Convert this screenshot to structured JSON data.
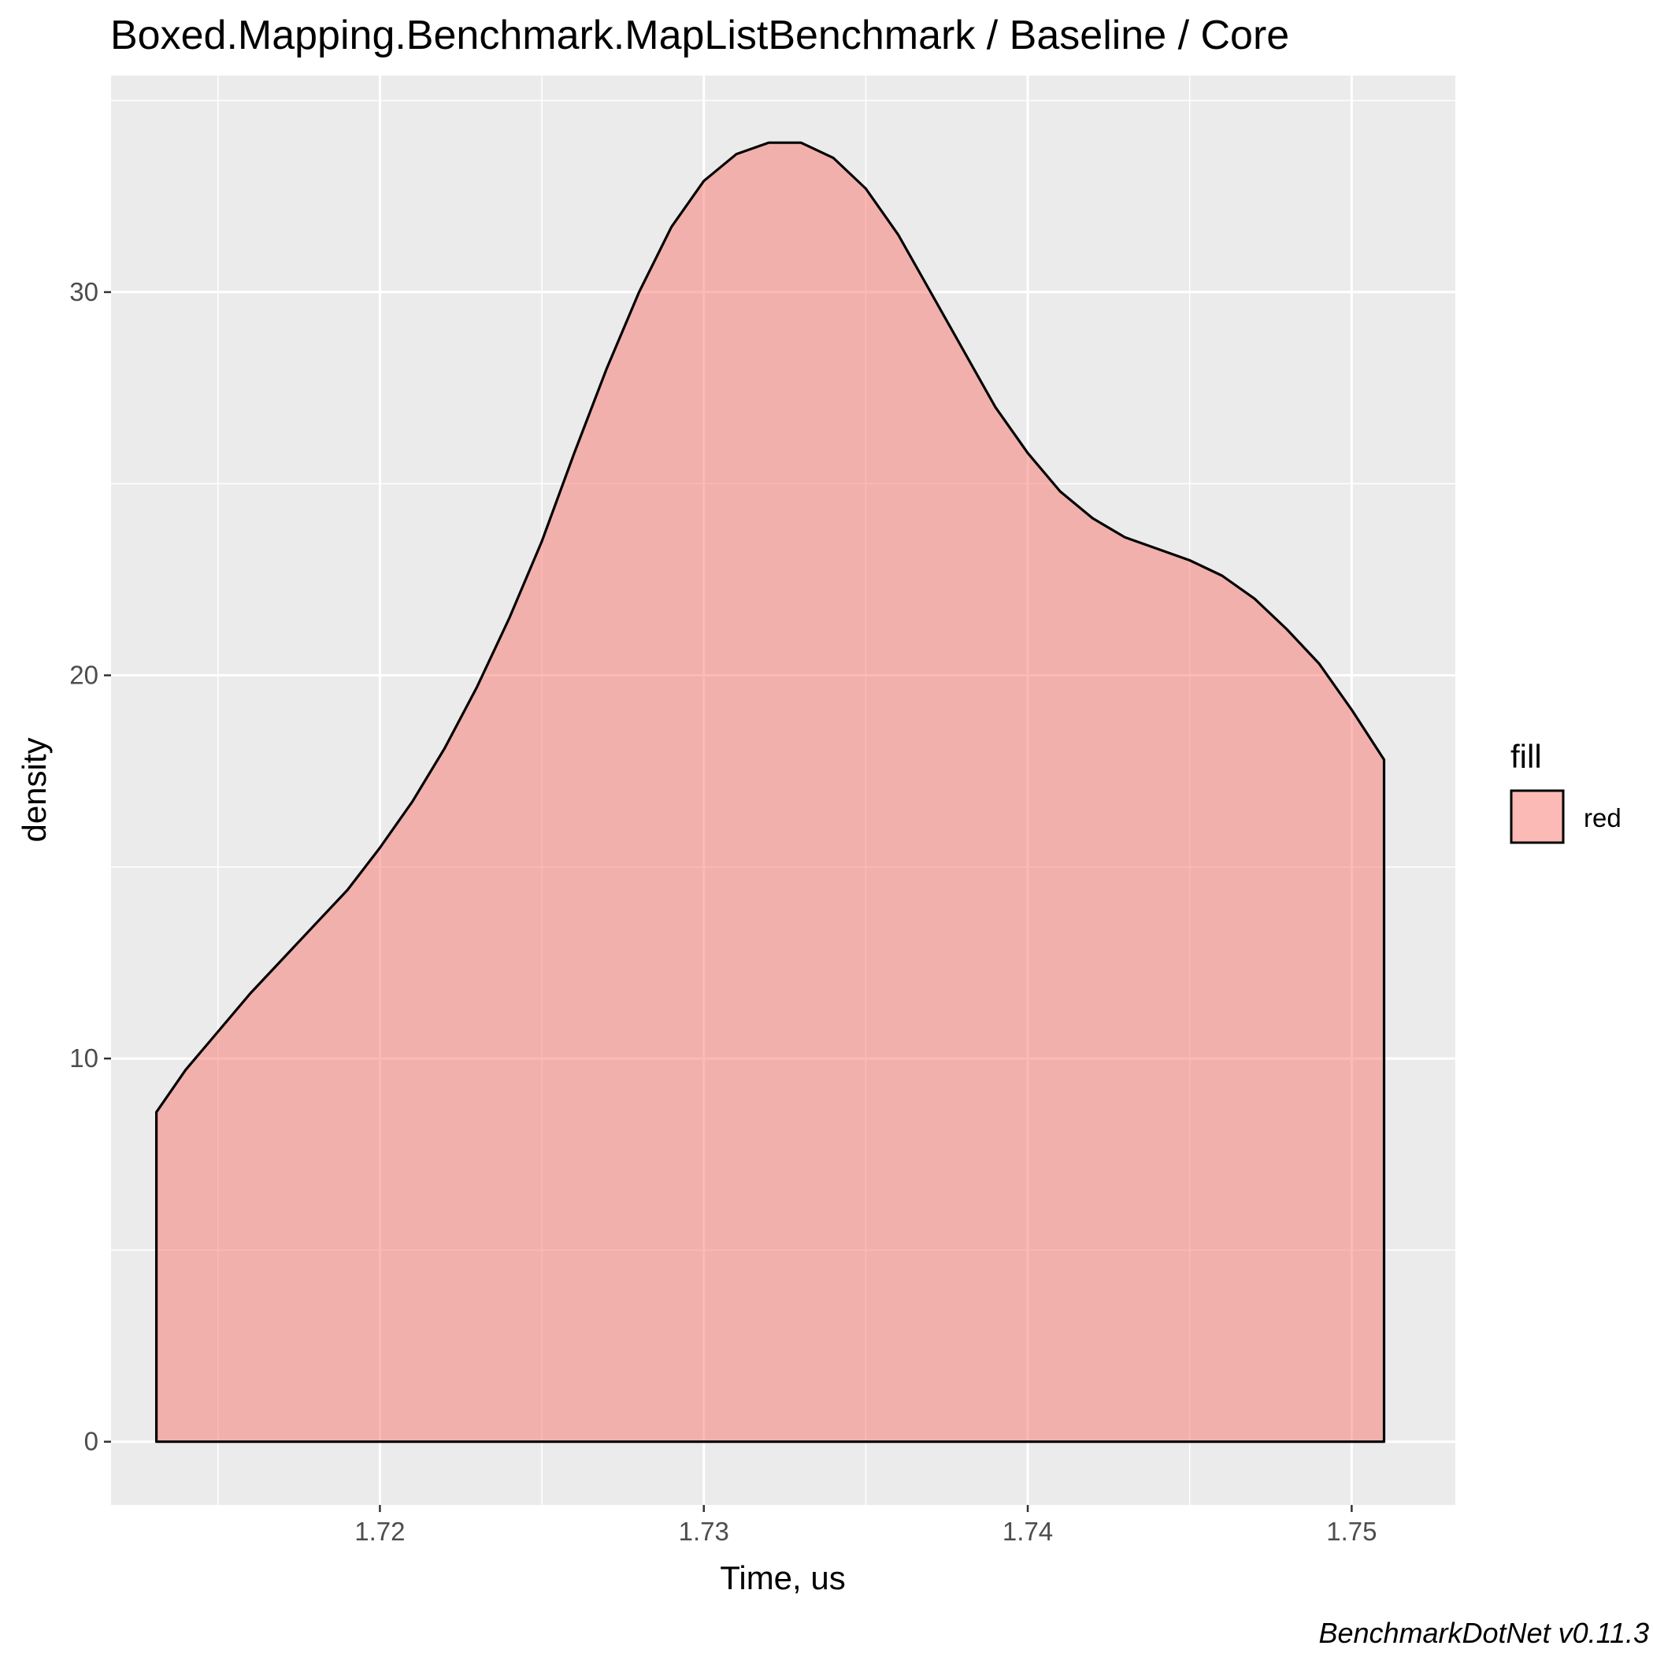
{
  "chart_data": {
    "type": "area",
    "title": "Boxed.Mapping.Benchmark.MapListBenchmark / Baseline / Core",
    "xlabel": "Time, us",
    "ylabel": "density",
    "caption": "BenchmarkDotNet v0.11.3",
    "xlim": [
      1.7117,
      1.7532
    ],
    "ylim": [
      -1.65,
      35.65
    ],
    "x_ticks": [
      1.72,
      1.73,
      1.74,
      1.75
    ],
    "x_tick_labels": [
      "1.72",
      "1.73",
      "1.74",
      "1.75"
    ],
    "y_ticks": [
      0,
      10,
      20,
      30
    ],
    "y_tick_labels": [
      "0",
      "10",
      "20",
      "30"
    ],
    "grid": true,
    "legend": {
      "title": "fill",
      "placement": "right",
      "entries": [
        {
          "label": "red",
          "color": "#f8766d"
        }
      ]
    },
    "series": [
      {
        "name": "red",
        "fill_color": "#f8766d",
        "fill_opacity": 0.5,
        "line_color": "#000000",
        "x": [
          1.7131,
          1.714,
          1.715,
          1.716,
          1.717,
          1.718,
          1.719,
          1.72,
          1.721,
          1.722,
          1.723,
          1.724,
          1.725,
          1.726,
          1.727,
          1.728,
          1.729,
          1.73,
          1.731,
          1.732,
          1.733,
          1.734,
          1.735,
          1.736,
          1.737,
          1.738,
          1.739,
          1.74,
          1.741,
          1.742,
          1.743,
          1.744,
          1.745,
          1.746,
          1.747,
          1.748,
          1.749,
          1.75,
          1.751
        ],
        "y": [
          8.6,
          9.7,
          10.7,
          11.7,
          12.6,
          13.5,
          14.4,
          15.5,
          16.7,
          18.1,
          19.7,
          21.5,
          23.5,
          25.8,
          28.0,
          30.0,
          31.7,
          32.9,
          33.6,
          33.9,
          33.9,
          33.5,
          32.7,
          31.5,
          30.0,
          28.5,
          27.0,
          25.8,
          24.8,
          24.1,
          23.6,
          23.3,
          23.0,
          22.6,
          22.0,
          21.2,
          20.3,
          19.1,
          17.8
        ]
      }
    ]
  }
}
